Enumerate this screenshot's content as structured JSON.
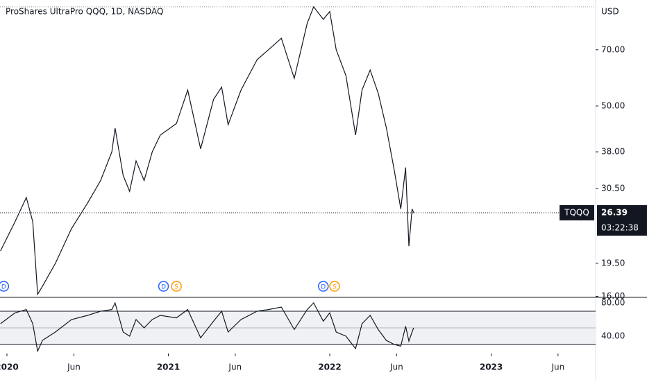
{
  "chart_data": {
    "type": "line",
    "title": "ProShares UltraPro QQQ, 1D, NASDAQ",
    "y_unit": "USD",
    "log_scale": true,
    "xlim": [
      2019.957,
      2023.647
    ],
    "xticks": [
      {
        "value": 2020,
        "label": "2020"
      },
      {
        "value": 2020.415,
        "label": "Jun"
      },
      {
        "value": 2021,
        "label": "2021"
      },
      {
        "value": 2021.414,
        "label": "Jun"
      },
      {
        "value": 2022,
        "label": "2022"
      },
      {
        "value": 2022.414,
        "label": "Jun"
      },
      {
        "value": 2023,
        "label": "2023"
      },
      {
        "value": 2023.414,
        "label": "Jun"
      }
    ],
    "ylim": [
      15.97,
      94.3
    ],
    "yticks": [
      {
        "value": 16,
        "label": "16.00"
      },
      {
        "value": 19.5,
        "label": "19.50"
      },
      {
        "value": 30.5,
        "label": "30.50"
      },
      {
        "value": 38,
        "label": "38.00"
      },
      {
        "value": 50,
        "label": "50.00"
      },
      {
        "value": 70,
        "label": "70.00"
      }
    ],
    "x": [
      2019.96,
      2020.05,
      2020.12,
      2020.16,
      2020.19,
      2020.22,
      2020.3,
      2020.4,
      2020.5,
      2020.58,
      2020.65,
      2020.67,
      2020.72,
      2020.76,
      2020.8,
      2020.85,
      2020.9,
      2020.95,
      2021.05,
      2021.12,
      2021.2,
      2021.28,
      2021.33,
      2021.37,
      2021.45,
      2021.55,
      2021.62,
      2021.7,
      2021.78,
      2021.86,
      2021.9,
      2021.96,
      2022.0,
      2022.04,
      2022.1,
      2022.16,
      2022.2,
      2022.25,
      2022.3,
      2022.35,
      2022.4,
      2022.44,
      2022.47,
      2022.49,
      2022.51,
      2022.52
    ],
    "series": [
      {
        "name": "TQQQ",
        "color": "#131722",
        "values": [
          21,
          25,
          28.9,
          25,
          16.2,
          17,
          19.5,
          24,
          28,
          32,
          38,
          43.8,
          33,
          30,
          36,
          32,
          38,
          42,
          45,
          55,
          38.7,
          52,
          56,
          44.7,
          55,
          66,
          70,
          75,
          59,
          82,
          90.5,
          84,
          88,
          70,
          60,
          42,
          55,
          62,
          54,
          44,
          34,
          27,
          34.6,
          21.6,
          27,
          26.39
        ]
      }
    ],
    "last_price": 26.39,
    "countdown": "03:22:38",
    "markers": [
      {
        "label": "D",
        "x": 2019.98,
        "color": "#2962ff"
      },
      {
        "label": "D",
        "x": 2020.97,
        "color": "#2962ff"
      },
      {
        "label": "S",
        "x": 2021.05,
        "color": "#ff9800"
      },
      {
        "label": "D",
        "x": 2021.96,
        "color": "#2962ff"
      },
      {
        "label": "S",
        "x": 2022.03,
        "color": "#ff9800"
      }
    ],
    "rsi": {
      "type": "line",
      "ylim": [
        19.2,
        85.8
      ],
      "yticks": [
        {
          "value": 40,
          "label": "40.00"
        },
        {
          "value": 80,
          "label": "80.00"
        }
      ],
      "bands": [
        30,
        50,
        70
      ],
      "color": "#131722",
      "values": [
        55,
        68,
        72,
        55,
        22,
        35,
        45,
        60,
        65,
        70,
        72,
        80,
        45,
        40,
        60,
        50,
        60,
        65,
        62,
        72,
        38,
        58,
        70,
        45,
        60,
        70,
        72,
        75,
        48,
        72,
        80,
        58,
        68,
        45,
        40,
        25,
        55,
        65,
        48,
        35,
        30,
        28,
        52,
        34,
        45,
        50
      ]
    }
  }
}
